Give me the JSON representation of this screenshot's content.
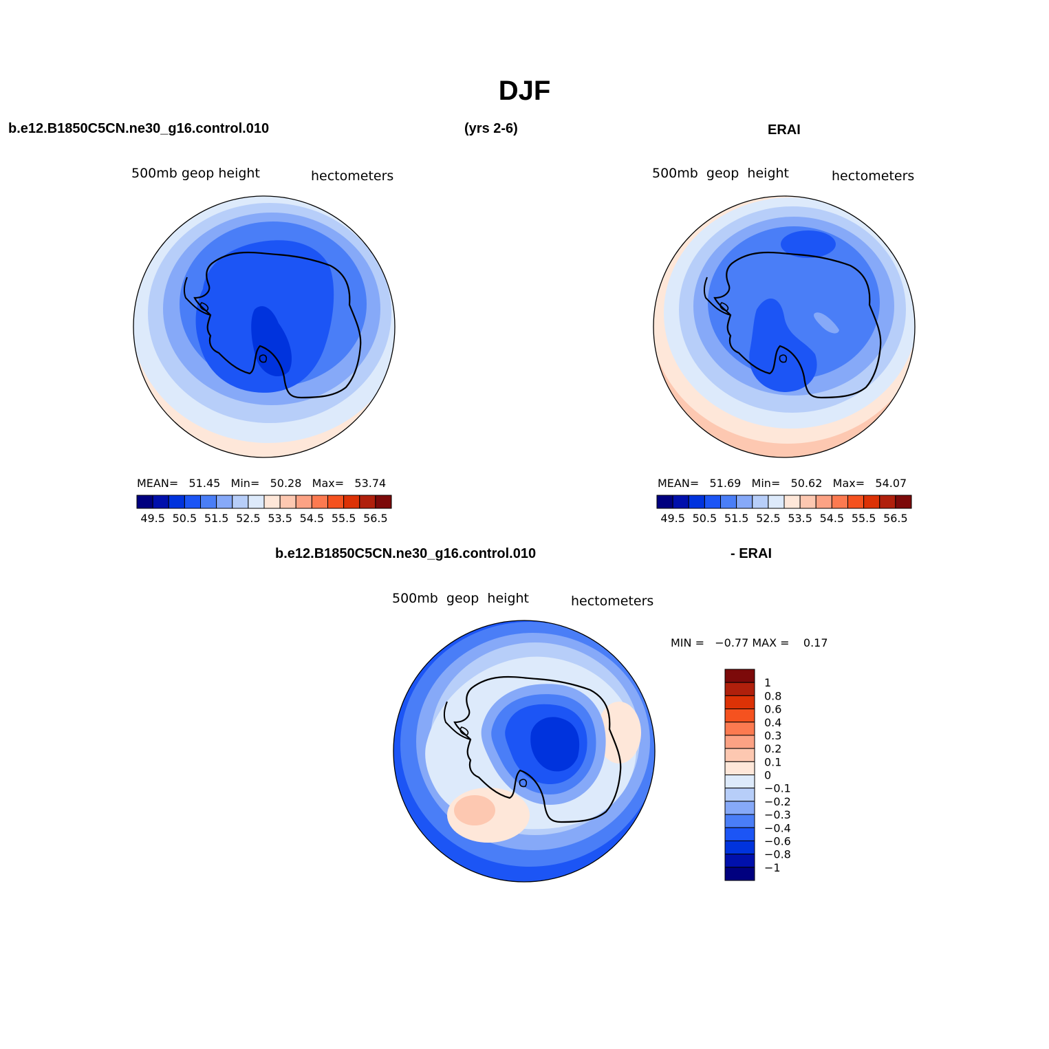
{
  "title": "DJF",
  "header": {
    "model_case": "b.e12.B1850C5CN.ne30_g16.control.010",
    "period": "(yrs 2-6)",
    "obs_name": "ERAI"
  },
  "panels": [
    {
      "variable": "500mb  geop  height",
      "units": "hectometers",
      "stats_text": "MEAN=   51.45   Min=   50.28   Max=   53.74",
      "mean": 51.45,
      "min": 50.28,
      "max": 53.74
    },
    {
      "variable": "500mb  geop  height",
      "units": "hectometers",
      "stats_text": "MEAN=   51.69   Min=   50.62   Max=   54.07",
      "mean": 51.69,
      "min": 50.62,
      "max": 54.07
    }
  ],
  "abs_colorbar": {
    "labels": [
      "49.5",
      "50.5",
      "51.5",
      "52.5",
      "53.5",
      "54.5",
      "55.5",
      "56.5"
    ],
    "colors": [
      "#00007f",
      "#0010ac",
      "#0033dd",
      "#1c55f5",
      "#4a7ef7",
      "#86a9f8",
      "#b7cef9",
      "#ddeafb",
      "#fee7d9",
      "#fdc8b1",
      "#fca284",
      "#fc7a50",
      "#f5521f",
      "#dc3206",
      "#b0200c",
      "#7c0a0a"
    ]
  },
  "difference": {
    "left_title": "b.e12.B1850C5CN.ne30_g16.control.010",
    "right_title": "- ERAI",
    "variable": "500mb  geop  height",
    "units": "hectometers",
    "stats_text": "MIN =   −0.77 MAX =    0.17",
    "min": -0.77,
    "max": 0.17,
    "colorbar": {
      "labels_top_to_bottom": [
        "1",
        "0.8",
        "0.6",
        "0.4",
        "0.3",
        "0.2",
        "0.1",
        "0",
        "−0.1",
        "−0.2",
        "−0.3",
        "−0.4",
        "−0.6",
        "−0.8",
        "−1"
      ],
      "colors_top_to_bottom": [
        "#7c0a0a",
        "#b0200c",
        "#dc3206",
        "#f5521f",
        "#fc7a50",
        "#fca284",
        "#fdc8b1",
        "#fee7d9",
        "#ddeafb",
        "#b7cef9",
        "#86a9f8",
        "#4a7ef7",
        "#1c55f5",
        "#0033dd",
        "#0010ac",
        "#00007f"
      ]
    }
  }
}
